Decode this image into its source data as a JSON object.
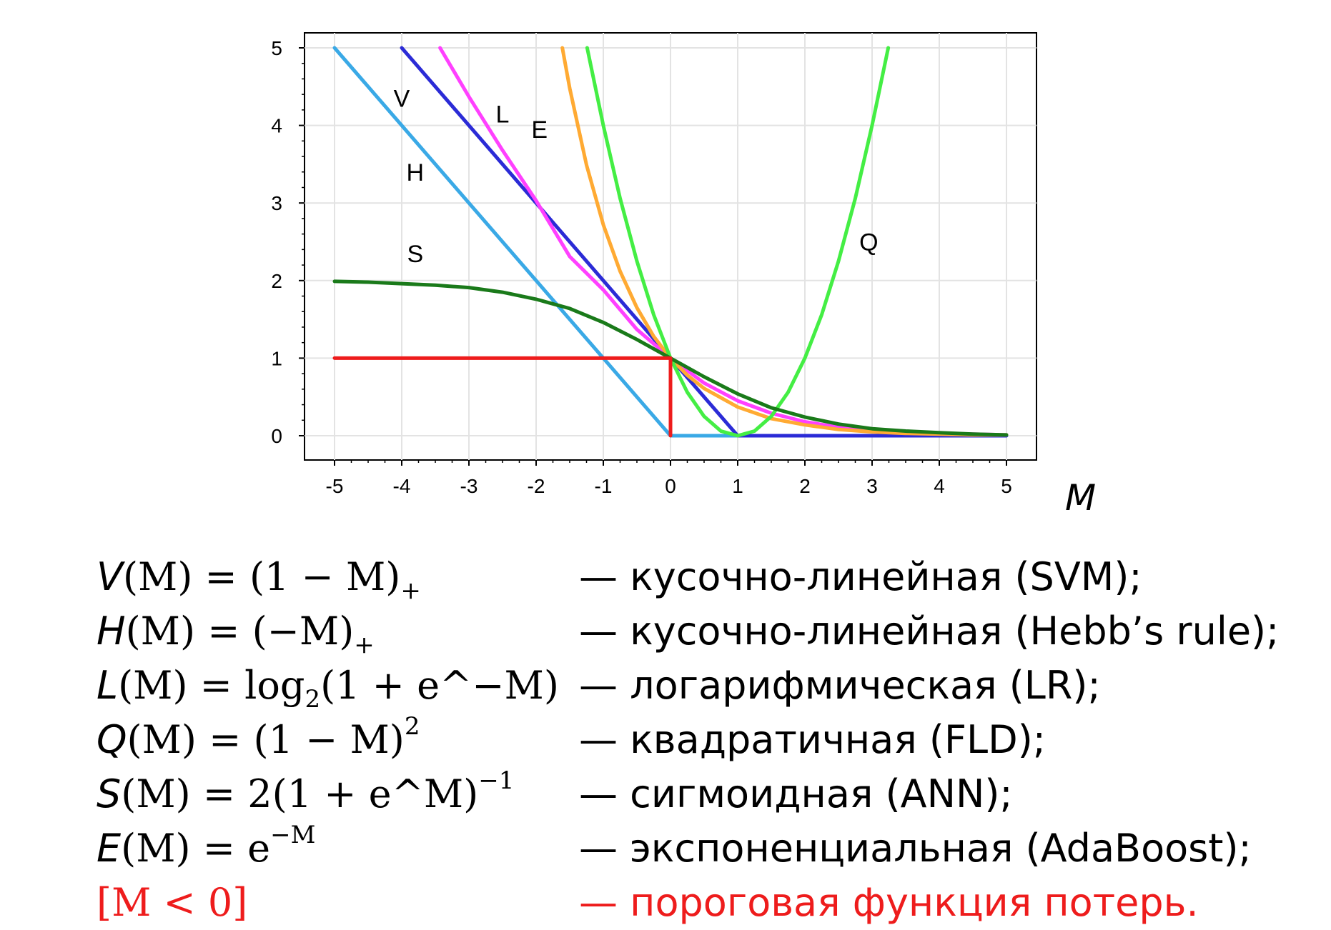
{
  "chart_data": {
    "type": "line",
    "xlabel": "M",
    "ylabel": "",
    "xlim": [
      -5,
      5
    ],
    "ylim": [
      0,
      5
    ],
    "xticks": [
      "-5",
      "-4",
      "-3",
      "-2",
      "-1",
      "0",
      "1",
      "2",
      "3",
      "4",
      "5"
    ],
    "yticks": [
      "0",
      "1",
      "2",
      "3",
      "4",
      "5"
    ],
    "grid": true,
    "series": [
      {
        "name": "H",
        "color": "#3aa9e6",
        "x": [
          -5,
          0,
          5
        ],
        "y": [
          5,
          0,
          0
        ]
      },
      {
        "name": "V",
        "color": "#2b2bd6",
        "x": [
          -4,
          1,
          5
        ],
        "y": [
          5,
          0,
          0
        ]
      },
      {
        "name": "L",
        "color": "#ff40ff",
        "x": [
          -3.43,
          -3,
          -2.5,
          -2,
          -1.5,
          -1,
          -0.5,
          0,
          0.5,
          1,
          1.5,
          2,
          2.5,
          3,
          3.5,
          4,
          4.5,
          5
        ],
        "y": [
          5.0,
          4.37,
          3.68,
          3.03,
          2.31,
          1.88,
          1.37,
          1.0,
          0.68,
          0.45,
          0.29,
          0.18,
          0.11,
          0.07,
          0.04,
          0.03,
          0.02,
          0.01
        ]
      },
      {
        "name": "E",
        "color": "#ffaa33",
        "x": [
          -1.61,
          -1.5,
          -1.25,
          -1,
          -0.75,
          -0.5,
          -0.25,
          0,
          0.25,
          0.5,
          1,
          1.5,
          2,
          2.5,
          3,
          3.5,
          4,
          4.5,
          5
        ],
        "y": [
          5.0,
          4.48,
          3.49,
          2.72,
          2.12,
          1.65,
          1.28,
          1.0,
          0.78,
          0.61,
          0.37,
          0.22,
          0.14,
          0.08,
          0.05,
          0.03,
          0.02,
          0.01,
          0.01
        ]
      },
      {
        "name": "Q",
        "color": "#44ee44",
        "x": [
          -1.24,
          -1,
          -0.75,
          -0.5,
          -0.25,
          0,
          0.25,
          0.5,
          0.75,
          1,
          1.25,
          1.5,
          1.75,
          2,
          2.25,
          2.5,
          2.75,
          3,
          3.24
        ],
        "y": [
          5.0,
          4.0,
          3.06,
          2.25,
          1.56,
          1.0,
          0.56,
          0.25,
          0.06,
          0.0,
          0.06,
          0.25,
          0.56,
          1.0,
          1.56,
          2.25,
          3.06,
          4.0,
          5.0
        ]
      },
      {
        "name": "S",
        "color": "#1a7a1a",
        "x": [
          -5,
          -4.5,
          -4,
          -3.5,
          -3,
          -2.5,
          -2,
          -1.5,
          -1,
          -0.5,
          0,
          0.5,
          1,
          1.5,
          2,
          2.5,
          3,
          3.5,
          4,
          4.5,
          5
        ],
        "y": [
          1.99,
          1.98,
          1.96,
          1.94,
          1.91,
          1.85,
          1.76,
          1.64,
          1.46,
          1.24,
          1.0,
          0.76,
          0.54,
          0.36,
          0.24,
          0.15,
          0.09,
          0.06,
          0.04,
          0.02,
          0.01
        ]
      },
      {
        "name": "[M < 0]",
        "color": "#ee1c1c",
        "x": [
          -5,
          0,
          0
        ],
        "y": [
          1,
          1,
          0
        ]
      }
    ],
    "annotations": [
      {
        "text": "V",
        "x": -4.0,
        "y": 4.35
      },
      {
        "text": "L",
        "x": -2.5,
        "y": 4.15
      },
      {
        "text": "E",
        "x": -1.95,
        "y": 3.95
      },
      {
        "text": "H",
        "x": -3.8,
        "y": 3.4
      },
      {
        "text": "S",
        "x": -3.8,
        "y": 2.35
      },
      {
        "text": "Q",
        "x": 2.95,
        "y": 2.5
      }
    ]
  },
  "equations": [
    {
      "func": "V",
      "arg": "(M) = (1 − M)",
      "sub": "+",
      "sup": "",
      "tail": "",
      "desc": "— кусочно-линейная (SVM);",
      "color": "#000000"
    },
    {
      "func": "H",
      "arg": "(M) = (−M)",
      "sub": "+",
      "sup": "",
      "tail": "",
      "desc": "— кусочно-линейная (Hebb’s rule);",
      "color": "#000000"
    },
    {
      "func": "L",
      "arg": "(M) = log",
      "sub": "2",
      "sup": "",
      "tail": "(1 + e^−M)",
      "desc": "— логарифмическая (LR);",
      "color": "#000000"
    },
    {
      "func": "Q",
      "arg": "(M) = (1 − M)",
      "sub": "",
      "sup": "2",
      "tail": "",
      "desc": "— квадратичная (FLD);",
      "color": "#000000"
    },
    {
      "func": "S",
      "arg": "(M) = 2(1 + e^M)",
      "sub": "",
      "sup": "−1",
      "tail": "",
      "desc": "— сигмоидная (ANN);",
      "color": "#000000"
    },
    {
      "func": "E",
      "arg": "(M) = e",
      "sub": "",
      "sup": "−M",
      "tail": "",
      "desc": "— экспоненциальная (AdaBoost);",
      "color": "#000000"
    },
    {
      "func": "",
      "arg": "[M < 0]",
      "sub": "",
      "sup": "",
      "tail": "",
      "desc": "— пороговая функция потерь.",
      "color": "#ee1c1c"
    }
  ]
}
